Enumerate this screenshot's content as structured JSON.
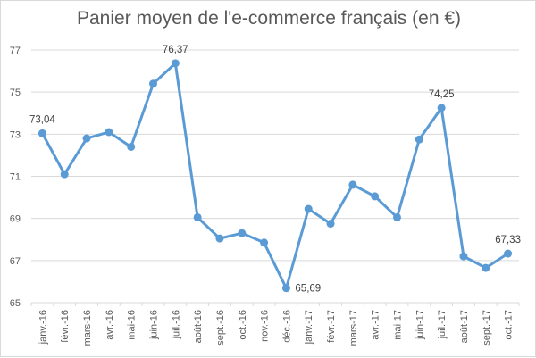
{
  "chart_data": {
    "type": "line",
    "title": "Panier moyen de l'e-commerce français (en €)",
    "xlabel": "",
    "ylabel": "",
    "ylim": [
      65,
      77
    ],
    "yticks": [
      "65",
      "67",
      "69",
      "71",
      "73",
      "75",
      "77"
    ],
    "grid": true,
    "legend": "none",
    "categories": [
      "janv.-16",
      "févr.-16",
      "mars-16",
      "avr.-16",
      "mai-16",
      "juin-16",
      "juil.-16",
      "août-16",
      "sept.-16",
      "oct.-16",
      "nov.-16",
      "déc.-16",
      "janv.-17",
      "févr.-17",
      "mars-17",
      "avr.-17",
      "mai-17",
      "juin-17",
      "juil.-17",
      "août-17",
      "sept.-17",
      "oct.-17"
    ],
    "series": [
      {
        "values": [
          73.04,
          71.1,
          72.8,
          73.1,
          72.4,
          75.4,
          76.37,
          69.05,
          68.05,
          68.3,
          67.85,
          65.69,
          69.45,
          68.75,
          70.6,
          70.05,
          69.05,
          72.75,
          74.25,
          67.2,
          66.65,
          67.33
        ]
      }
    ],
    "data_labels": [
      {
        "index": 0,
        "text": "73,04"
      },
      {
        "index": 6,
        "text": "76,37"
      },
      {
        "index": 11,
        "text": "65,69"
      },
      {
        "index": 18,
        "text": "74,25"
      },
      {
        "index": 21,
        "text": "67,33"
      }
    ],
    "colors": {
      "line": "#5b9bd5",
      "grid": "#d9d9d9",
      "text": "#595959"
    }
  }
}
